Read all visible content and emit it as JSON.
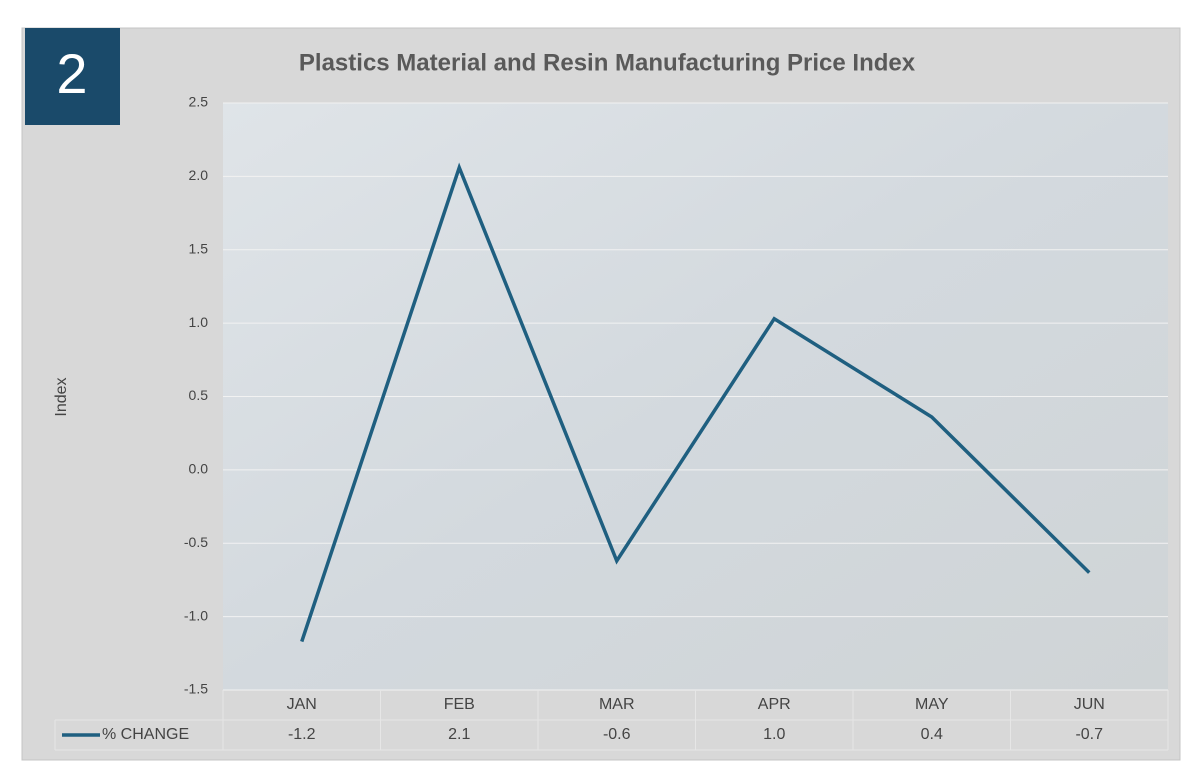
{
  "badge": "2",
  "chart_data": {
    "type": "line",
    "title": "Plastics Material and Resin Manufacturing Price Index",
    "y_label": "Index",
    "categories": [
      "JAN",
      "FEB",
      "MAR",
      "APR",
      "MAY",
      "JUN"
    ],
    "series": [
      {
        "name": "% CHANGE",
        "color": "#1f5f80",
        "values": [
          -1.17,
          2.06,
          -0.62,
          1.03,
          0.36,
          -0.7
        ],
        "value_labels": [
          "-1.2",
          "2.1",
          "-0.6",
          "1.0",
          "0.4",
          "-0.7"
        ]
      }
    ],
    "ylim": [
      -1.5,
      2.5
    ],
    "yticks": [
      -1.5,
      {
        "value": -1,
        "label": "-1.0"
      },
      -0.5,
      {
        "value": 0,
        "label": "0.0"
      },
      0.5,
      {
        "value": 1,
        "label": "1.0"
      },
      1.5,
      {
        "value": 2,
        "label": "2.0"
      },
      2.5
    ],
    "grid": true
  }
}
